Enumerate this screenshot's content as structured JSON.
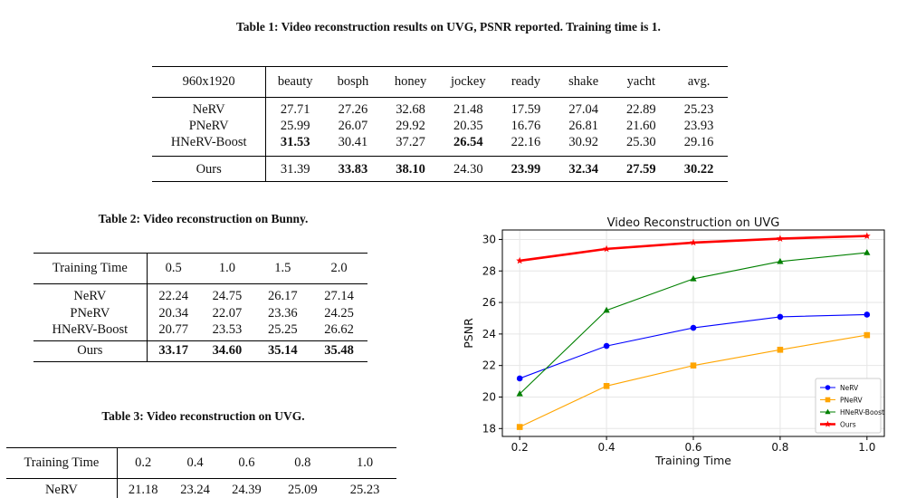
{
  "table1": {
    "caption": "Table 1: Video reconstruction results on UVG, PSNR reported. Training time is 1.",
    "header": [
      "960x1920",
      "beauty",
      "bosph",
      "honey",
      "jockey",
      "ready",
      "shake",
      "yacht",
      "avg."
    ],
    "rows": [
      [
        "NeRV",
        "27.71",
        "27.26",
        "32.68",
        "21.48",
        "17.59",
        "27.04",
        "22.89",
        "25.23"
      ],
      [
        "PNeRV",
        "25.99",
        "26.07",
        "29.92",
        "20.35",
        "16.76",
        "26.81",
        "21.60",
        "23.93"
      ],
      [
        "HNeRV-Boost",
        "31.53",
        "30.41",
        "37.27",
        "26.54",
        "22.16",
        "30.92",
        "25.30",
        "29.16"
      ],
      [
        "Ours",
        "31.39",
        "33.83",
        "38.10",
        "24.30",
        "23.99",
        "32.34",
        "27.59",
        "30.22"
      ]
    ]
  },
  "table2": {
    "caption": "Table 2: Video reconstruction on Bunny.",
    "header": [
      "Training Time",
      "0.5",
      "1.0",
      "1.5",
      "2.0"
    ],
    "rows": [
      [
        "NeRV",
        "22.24",
        "24.75",
        "26.17",
        "27.14"
      ],
      [
        "PNeRV",
        "20.34",
        "22.07",
        "23.36",
        "24.25"
      ],
      [
        "HNeRV-Boost",
        "20.77",
        "23.53",
        "25.25",
        "26.62"
      ],
      [
        "Ours",
        "33.17",
        "34.60",
        "35.14",
        "35.48"
      ]
    ]
  },
  "table3": {
    "caption": "Table 3: Video reconstruction on UVG.",
    "header": [
      "Training Time",
      "0.2",
      "0.4",
      "0.6",
      "0.8",
      "1.0"
    ],
    "rows": [
      [
        "NeRV",
        "21.18",
        "23.24",
        "24.39",
        "25.09",
        "25.23"
      ]
    ]
  },
  "chart_data": {
    "type": "line",
    "title": "Video Reconstruction on UVG",
    "xlabel": "Training Time",
    "ylabel": "PSNR",
    "x": [
      0.2,
      0.4,
      0.6,
      0.8,
      1.0
    ],
    "xlim": [
      0.16,
      1.04
    ],
    "ylim": [
      17.5,
      30.6
    ],
    "xticks": [
      "0.2",
      "0.4",
      "0.6",
      "0.8",
      "1.0"
    ],
    "yticks": [
      "18",
      "20",
      "22",
      "24",
      "26",
      "28",
      "30"
    ],
    "grid": true,
    "legend": "lower right",
    "series": [
      {
        "name": "NeRV",
        "color": "#0000ff",
        "marker": "circle",
        "values": [
          21.18,
          23.24,
          24.39,
          25.09,
          25.23
        ]
      },
      {
        "name": "PNeRV",
        "color": "#ffa500",
        "marker": "square",
        "values": [
          18.1,
          20.7,
          22.0,
          23.0,
          23.93
        ]
      },
      {
        "name": "HNeRV-Boost",
        "color": "#008000",
        "marker": "triangle",
        "values": [
          20.2,
          25.5,
          27.5,
          28.6,
          29.16
        ]
      },
      {
        "name": "Ours",
        "color": "#ff0000",
        "marker": "star",
        "values": [
          28.65,
          29.4,
          29.8,
          30.05,
          30.22
        ]
      }
    ]
  }
}
